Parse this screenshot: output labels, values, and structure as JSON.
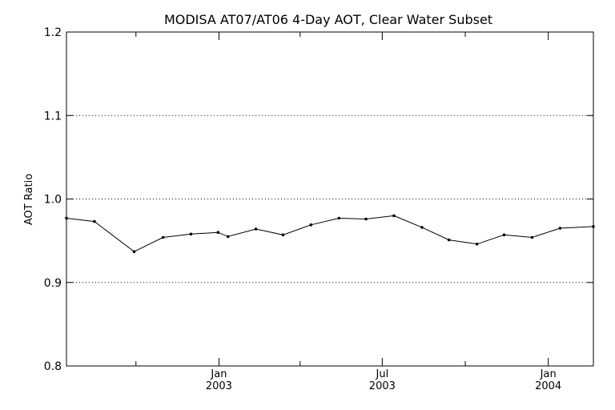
{
  "chart_data": {
    "type": "line",
    "title": "MODISA AT07/AT06 4-Day AOT, Clear Water Subset",
    "xlabel": "",
    "ylabel": "AOT Ratio",
    "ylim": [
      0.8,
      1.2
    ],
    "yticks": [
      "0.8",
      "0.9",
      "1.0",
      "1.1",
      "1.2"
    ],
    "ygrid": [
      0.9,
      1.0,
      1.1
    ],
    "xlim": [
      "2002-07-16",
      "2004-02-20"
    ],
    "xtick_labels": [
      {
        "date": "2003-01-01",
        "month": "Jan",
        "year": "2003"
      },
      {
        "date": "2003-07-01",
        "month": "Jul",
        "year": "2003"
      },
      {
        "date": "2004-01-01",
        "month": "Jan",
        "year": "2004"
      }
    ],
    "minor_ticks": [
      "2002-10-01",
      "2003-04-01",
      "2003-10-01"
    ],
    "series": [
      {
        "x": [
          "2002-07-16",
          "2002-08-16",
          "2002-09-29",
          "2002-10-31",
          "2002-12-01",
          "2002-12-31",
          "2003-01-11",
          "2003-02-11",
          "2003-03-13",
          "2003-04-13",
          "2003-05-14",
          "2003-06-13",
          "2003-07-14",
          "2003-08-14",
          "2003-09-13",
          "2003-10-14",
          "2003-11-13",
          "2003-12-14",
          "2004-01-14",
          "2004-02-20"
        ],
        "values": [
          0.977,
          0.973,
          0.937,
          0.954,
          0.958,
          0.96,
          0.955,
          0.964,
          0.957,
          0.969,
          0.977,
          0.976,
          0.98,
          0.966,
          0.951,
          0.946,
          0.957,
          0.954,
          0.965,
          0.967
        ]
      }
    ]
  }
}
